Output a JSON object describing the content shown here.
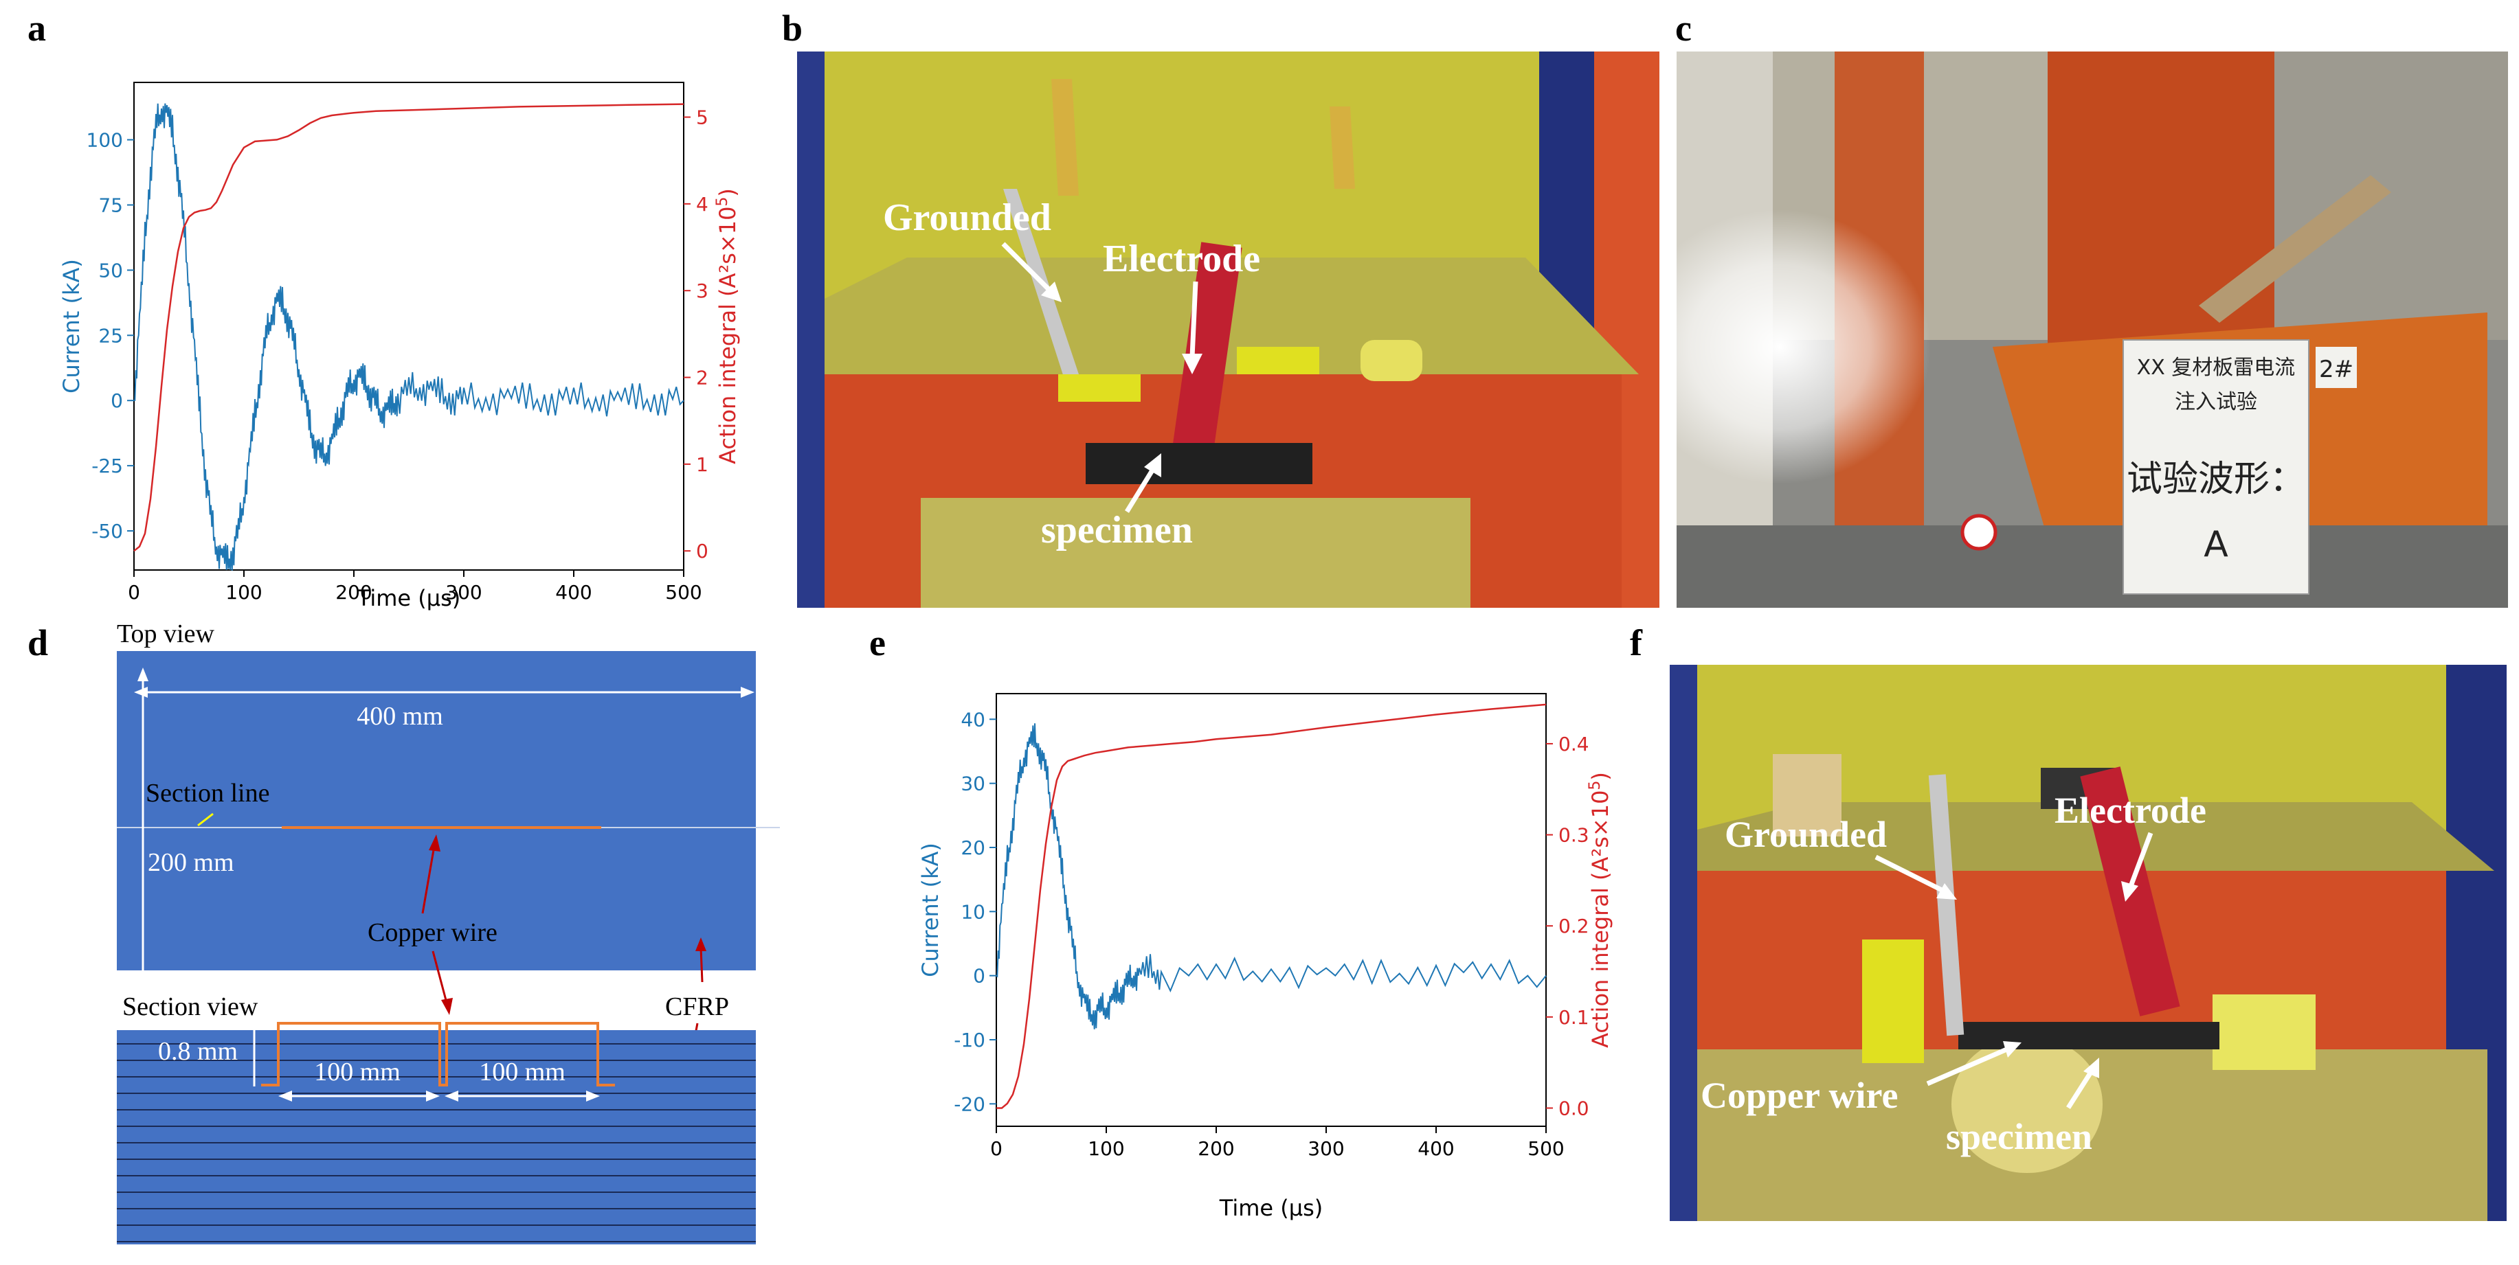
{
  "panels": {
    "a": "a",
    "b": "b",
    "c": "c",
    "d": "d",
    "e": "e",
    "f": "f"
  },
  "colors": {
    "current": "#1f77b4",
    "action": "#d62728",
    "cfrp": "#4472c4",
    "copper": "#ed7d31",
    "photo_yellow": "#c8c040",
    "photo_red": "#d8502a",
    "photo_blue": "#20307a"
  },
  "chart_data": [
    {
      "id": "a",
      "type": "line",
      "xlabel": "Time (µs)",
      "ylabel_left": "Current (kA)",
      "ylabel_right_main": "Action integral (A²s×10",
      "ylabel_right_exp": "5",
      "ylabel_right_close": ")",
      "xlim": [
        0,
        500
      ],
      "ylim_left": [
        -65,
        122
      ],
      "ylim_right": [
        -0.22,
        5.4
      ],
      "xticks": [
        0,
        100,
        200,
        300,
        400,
        500
      ],
      "yticks_left": [
        -50,
        -25,
        0,
        25,
        50,
        75,
        100
      ],
      "yticks_right": [
        0,
        1,
        2,
        3,
        4,
        5
      ],
      "series": [
        {
          "name": "Current",
          "axis": "left",
          "color": "#1f77b4",
          "x": [
            0,
            5,
            10,
            15,
            20,
            25,
            30,
            35,
            40,
            45,
            50,
            55,
            60,
            65,
            70,
            75,
            80,
            85,
            90,
            95,
            100,
            105,
            110,
            115,
            120,
            125,
            130,
            135,
            140,
            145,
            150,
            155,
            160,
            165,
            170,
            175,
            180,
            185,
            190,
            195,
            200,
            205,
            210,
            215,
            220,
            225,
            230,
            235,
            240,
            250,
            260,
            270,
            280,
            290,
            300,
            320,
            340,
            360,
            380,
            400,
            420,
            440,
            460,
            480,
            500
          ],
          "y": [
            0,
            30,
            62,
            88,
            105,
            112,
            110,
            103,
            88,
            68,
            45,
            20,
            -5,
            -28,
            -45,
            -56,
            -60,
            -62,
            -58,
            -50,
            -37,
            -22,
            -6,
            10,
            24,
            33,
            38,
            37,
            32,
            23,
            12,
            1,
            -10,
            -17,
            -21,
            -20,
            -16,
            -9,
            -2,
            4,
            8,
            9,
            7,
            3,
            -1,
            -4,
            -4,
            -2,
            1,
            4,
            5,
            4,
            2,
            1,
            0,
            1,
            1,
            0,
            1,
            0,
            1,
            0,
            0,
            1,
            0
          ]
        },
        {
          "name": "Action integral",
          "axis": "right",
          "color": "#d62728",
          "x": [
            0,
            5,
            10,
            15,
            20,
            25,
            30,
            35,
            40,
            45,
            50,
            55,
            60,
            65,
            70,
            75,
            80,
            85,
            90,
            100,
            110,
            120,
            130,
            140,
            150,
            160,
            170,
            180,
            200,
            220,
            250,
            300,
            350,
            400,
            450,
            500
          ],
          "y": [
            0,
            0.05,
            0.2,
            0.6,
            1.2,
            1.9,
            2.55,
            3.05,
            3.45,
            3.72,
            3.85,
            3.9,
            3.92,
            3.93,
            3.95,
            4.02,
            4.15,
            4.3,
            4.45,
            4.65,
            4.72,
            4.73,
            4.74,
            4.78,
            4.85,
            4.93,
            4.99,
            5.02,
            5.05,
            5.07,
            5.08,
            5.1,
            5.12,
            5.13,
            5.14,
            5.15
          ]
        }
      ]
    },
    {
      "id": "e",
      "type": "line",
      "xlabel": "Time (µs)",
      "ylabel_left": "Current (kA)",
      "ylabel_right_main": "Action integral (A²s×10",
      "ylabel_right_exp": "5",
      "ylabel_right_close": ")",
      "xlim": [
        0,
        500
      ],
      "ylim_left": [
        -23.5,
        44
      ],
      "ylim_right": [
        -0.02,
        0.455
      ],
      "xticks": [
        0,
        100,
        200,
        300,
        400,
        500
      ],
      "yticks_left": [
        -20,
        -10,
        0,
        10,
        20,
        30,
        40
      ],
      "yticks_right": [
        0.0,
        0.1,
        0.2,
        0.3,
        0.4
      ],
      "series": [
        {
          "name": "Current",
          "axis": "left",
          "color": "#1f77b4",
          "x": [
            0,
            5,
            10,
            15,
            20,
            25,
            30,
            35,
            40,
            45,
            50,
            55,
            60,
            65,
            70,
            75,
            80,
            85,
            90,
            95,
            100,
            105,
            110,
            115,
            120,
            125,
            130,
            140,
            150,
            200,
            250,
            300,
            350,
            400,
            450,
            500
          ],
          "y": [
            0,
            10,
            18,
            24,
            30,
            34,
            36,
            37,
            35,
            32,
            27,
            22,
            16,
            10,
            4,
            -1,
            -4,
            -6,
            -6,
            -5,
            -5,
            -4,
            -3,
            -2,
            -1,
            0,
            0,
            1,
            0,
            0,
            1,
            0,
            0,
            1,
            0,
            0
          ]
        },
        {
          "name": "Action integral",
          "axis": "right",
          "color": "#d62728",
          "x": [
            0,
            5,
            10,
            15,
            20,
            25,
            30,
            35,
            40,
            45,
            50,
            55,
            60,
            65,
            70,
            75,
            80,
            90,
            100,
            120,
            140,
            160,
            180,
            200,
            250,
            300,
            350,
            400,
            450,
            500
          ],
          "y": [
            0,
            0,
            0.005,
            0.015,
            0.035,
            0.07,
            0.12,
            0.18,
            0.24,
            0.29,
            0.33,
            0.36,
            0.375,
            0.381,
            0.383,
            0.385,
            0.387,
            0.39,
            0.392,
            0.396,
            0.398,
            0.4,
            0.402,
            0.405,
            0.41,
            0.418,
            0.425,
            0.432,
            0.438,
            0.443
          ]
        }
      ]
    }
  ],
  "photo_b": {
    "grounded": "Grounded",
    "electrode": "Electrode",
    "specimen": "specimen"
  },
  "photo_c": {
    "sign_line1": "XX 复材板雷电流",
    "sign_line2": "注入试验",
    "sign_line3": "试验波形：",
    "sign_line4": "A",
    "sign_tag": "2#"
  },
  "diagram_d": {
    "top_view": "Top view",
    "width_label": "400 mm",
    "section_line": "Section line",
    "height_label": "200 mm",
    "copper_wire": "Copper wire",
    "cfrp": "CFRP",
    "section_view": "Section view",
    "depth_label": "0.8 mm",
    "seg1_label": "100 mm",
    "seg2_label": "100 mm"
  },
  "photo_f": {
    "grounded": "Grounded",
    "electrode": "Electrode",
    "copper_wire": "Copper wire",
    "specimen": "specimen"
  }
}
